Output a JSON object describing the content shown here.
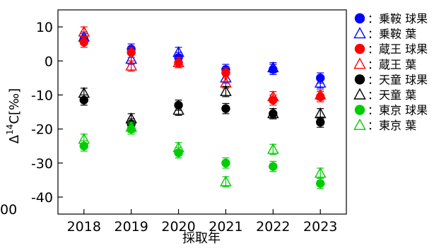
{
  "chart_data": {
    "type": "scatter",
    "xlabel": "採取年",
    "ylabel": "Δ¹⁴C[‰]",
    "ylabel_parts": {
      "delta": "Δ",
      "sup": "14",
      "rest": "C[‰]"
    },
    "xlim": [
      2017.45,
      2023.55
    ],
    "ylim": [
      -45,
      15
    ],
    "x_ticks": [
      2018,
      2019,
      2020,
      2021,
      2022,
      2023
    ],
    "y_ticks": [
      10,
      0,
      -10,
      -20,
      -30,
      -40
    ],
    "partial_left_label": "00",
    "legend_position": "right",
    "series": [
      {
        "name": "：乗鞍 球果",
        "marker": "circle",
        "color": "#0000ff",
        "x": [
          2018,
          2019,
          2020,
          2021,
          2022,
          2023
        ],
        "y": [
          6.5,
          3.5,
          1.0,
          -2.5,
          -2.5,
          -5.0
        ],
        "err": 1.5
      },
      {
        "name": "：乗鞍 葉",
        "marker": "triangle",
        "color": "#0000ff",
        "x": [
          2018,
          2019,
          2020,
          2021,
          2022,
          2023
        ],
        "y": [
          7.0,
          0.5,
          2.5,
          -5.0,
          -2.0,
          -6.5
        ],
        "err": 1.5
      },
      {
        "name": "：蔵王 球果",
        "marker": "circle",
        "color": "#ff0000",
        "x": [
          2018,
          2019,
          2020,
          2021,
          2022,
          2023
        ],
        "y": [
          5.5,
          2.5,
          -0.5,
          -3.5,
          -11.5,
          -10.5
        ],
        "err": 1.5
      },
      {
        "name": "：蔵王 葉",
        "marker": "triangle",
        "color": "#ff0000",
        "x": [
          2018,
          2019,
          2020,
          2021,
          2022,
          2023
        ],
        "y": [
          8.5,
          -1.5,
          -0.5,
          -6.5,
          -10.5,
          -10.0
        ],
        "err": 1.5
      },
      {
        "name": "：天童 球果",
        "marker": "circle",
        "color": "#000000",
        "x": [
          2018,
          2019,
          2020,
          2021,
          2022,
          2023
        ],
        "y": [
          -11.5,
          -18.5,
          -13.0,
          -14.0,
          -15.5,
          -18.0
        ],
        "err": 1.5
      },
      {
        "name": "：天童 葉",
        "marker": "triangle",
        "color": "#000000",
        "x": [
          2018,
          2019,
          2020,
          2021,
          2022,
          2023
        ],
        "y": [
          -9.5,
          -17.0,
          -14.5,
          -9.0,
          -15.5,
          -15.5
        ],
        "err": 1.5
      },
      {
        "name": "：東京 球果",
        "marker": "circle",
        "color": "#00cc00",
        "x": [
          2018,
          2019,
          2020,
          2021,
          2022,
          2023
        ],
        "y": [
          -25.0,
          -20.0,
          -27.0,
          -30.0,
          -31.0,
          -36.0
        ],
        "err": 1.5
      },
      {
        "name": "：東京 葉",
        "marker": "triangle",
        "color": "#00cc00",
        "x": [
          2018,
          2019,
          2020,
          2021,
          2022,
          2023
        ],
        "y": [
          -23.0,
          -19.5,
          -25.5,
          -35.5,
          -26.0,
          -33.0
        ],
        "err": 1.5
      }
    ]
  }
}
